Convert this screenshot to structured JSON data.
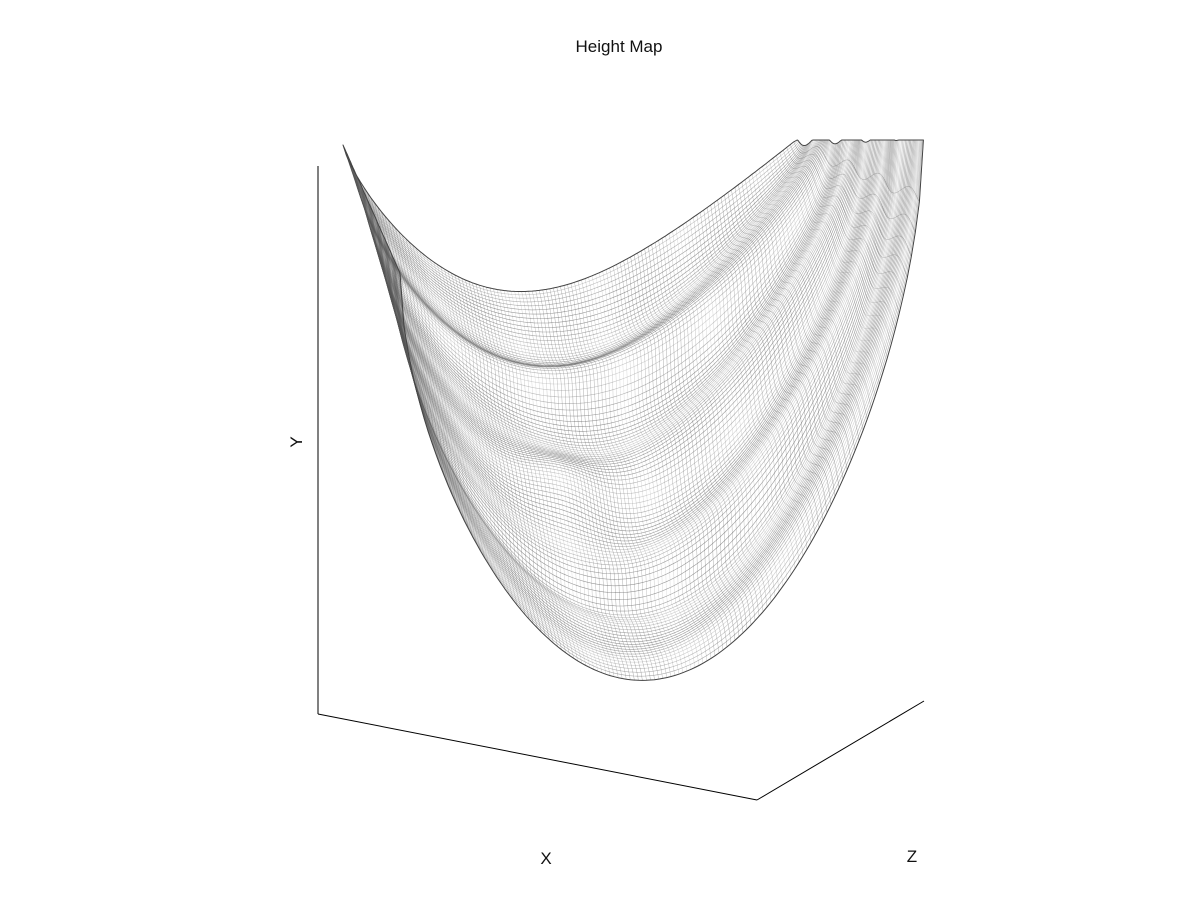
{
  "chart_data": {
    "type": "surface",
    "title": "Height Map",
    "xlabel": "X",
    "ylabel": "Y",
    "zlabel": "Z",
    "render_style": "wireframe mesh",
    "mesh_color": "#555555",
    "background": "#ffffff",
    "grid": false,
    "tick_labels": false,
    "legend": false
  }
}
